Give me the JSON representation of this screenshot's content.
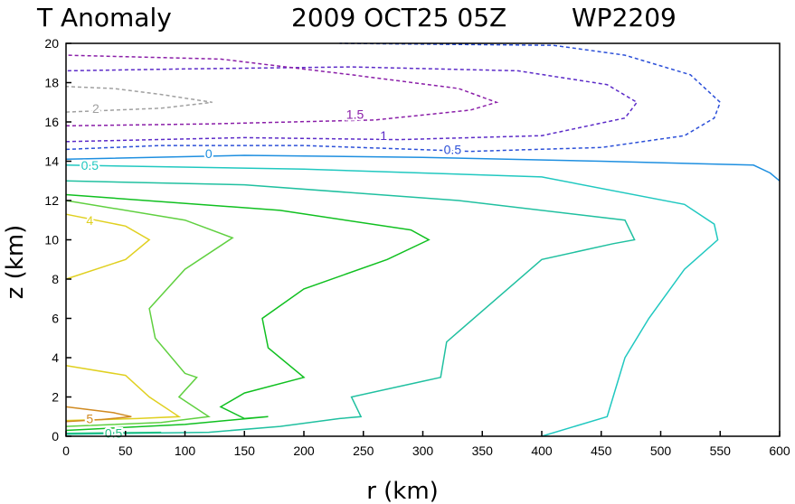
{
  "chart_data": {
    "type": "contour",
    "title": {
      "left": "T Anomaly",
      "date": "2009 OCT25 05Z",
      "storm": "WP2209"
    },
    "xlabel": "r (km)",
    "ylabel": "z (km)",
    "xlim": [
      0,
      600
    ],
    "ylim": [
      0,
      20
    ],
    "xticks": [
      0,
      50,
      100,
      150,
      200,
      250,
      300,
      350,
      400,
      450,
      500,
      550,
      600
    ],
    "yticks": [
      0,
      2,
      4,
      6,
      8,
      10,
      12,
      14,
      16,
      18,
      20
    ],
    "contours": [
      {
        "level": "-0.5",
        "style": "dashed",
        "color": "#2b4fd8",
        "label": "0.5",
        "label_at": [
          325,
          14.6
        ],
        "lines": [
          [
            [
              0,
              14.6
            ],
            [
              80,
              14.8
            ],
            [
              200,
              14.8
            ],
            [
              340,
              14.5
            ],
            [
              450,
              14.7
            ],
            [
              520,
              15.3
            ],
            [
              545,
              16.2
            ],
            [
              550,
              17.0
            ],
            [
              525,
              18.4
            ],
            [
              470,
              19.4
            ],
            [
              410,
              19.9
            ],
            [
              230,
              20.0
            ]
          ]
        ]
      },
      {
        "level": "-1",
        "style": "dashed",
        "color": "#5b2ac8",
        "label": "1",
        "label_at": [
          267,
          15.3
        ],
        "lines": [
          [
            [
              0,
              15.0
            ],
            [
              150,
              15.2
            ],
            [
              280,
              15.1
            ],
            [
              400,
              15.3
            ],
            [
              470,
              16.2
            ],
            [
              480,
              17.0
            ],
            [
              455,
              17.9
            ],
            [
              380,
              18.6
            ],
            [
              240,
              18.8
            ],
            [
              100,
              18.7
            ],
            [
              0,
              18.6
            ]
          ]
        ]
      },
      {
        "level": "-1.5",
        "style": "dashed",
        "color": "#8a1ea8",
        "label": "1.5",
        "label_at": [
          243,
          16.4
        ],
        "lines": [
          [
            [
              0,
              15.8
            ],
            [
              120,
              15.9
            ],
            [
              260,
              16.1
            ],
            [
              340,
              16.6
            ],
            [
              362,
              17.0
            ],
            [
              330,
              17.7
            ],
            [
              240,
              18.4
            ],
            [
              130,
              19.2
            ],
            [
              0,
              19.4
            ]
          ]
        ]
      },
      {
        "level": "-2",
        "style": "dashed",
        "color": "#a0a0a0",
        "label": "2",
        "label_at": [
          25,
          16.7
        ],
        "lines": [
          [
            [
              0,
              16.5
            ],
            [
              80,
              16.7
            ],
            [
              123,
              17.0
            ],
            [
              80,
              17.4
            ],
            [
              40,
              17.7
            ],
            [
              0,
              17.8
            ]
          ]
        ]
      },
      {
        "level": "0",
        "style": "solid",
        "color": "#1e8fe0",
        "label": "0",
        "label_at": [
          120,
          14.4
        ],
        "lines": [
          [
            [
              0,
              14.1
            ],
            [
              150,
              14.3
            ],
            [
              300,
              14.2
            ],
            [
              450,
              14.0
            ],
            [
              578,
              13.8
            ],
            [
              592,
              13.4
            ],
            [
              600,
              13.0
            ]
          ]
        ]
      },
      {
        "level": "0.5",
        "style": "solid",
        "color": "#20c8c0",
        "label": "0.5",
        "label_at": [
          20,
          13.8
        ],
        "lines": [
          [
            [
              0,
              13.8
            ],
            [
              200,
              13.6
            ],
            [
              400,
              13.2
            ],
            [
              520,
              11.8
            ],
            [
              545,
              10.8
            ],
            [
              548,
              10.0
            ],
            [
              520,
              8.5
            ],
            [
              490,
              6.0
            ],
            [
              470,
              4.0
            ],
            [
              460,
              2.0
            ],
            [
              455,
              1.0
            ],
            [
              400,
              0.0
            ]
          ]
        ]
      },
      {
        "level": "1",
        "style": "solid",
        "color": "#20c0a0",
        "lines": [
          [
            [
              0,
              13.0
            ],
            [
              150,
              12.8
            ],
            [
              330,
              12.0
            ],
            [
              470,
              11.0
            ],
            [
              478,
              10.0
            ],
            [
              460,
              9.8
            ],
            [
              400,
              9.0
            ],
            [
              320,
              4.8
            ],
            [
              315,
              3.0
            ],
            [
              300,
              2.8
            ],
            [
              240,
              2.0
            ],
            [
              248,
              1.0
            ],
            [
              230,
              0.9
            ],
            [
              180,
              0.5
            ],
            [
              120,
              0.2
            ],
            [
              0,
              0.1
            ]
          ]
        ]
      },
      {
        "level": "1.5",
        "style": "solid",
        "color": "#10c020",
        "lines": [
          [
            [
              0,
              12.3
            ],
            [
              180,
              11.5
            ],
            [
              290,
              10.5
            ],
            [
              305,
              10.0
            ],
            [
              270,
              9.0
            ],
            [
              200,
              7.5
            ],
            [
              165,
              6.0
            ],
            [
              170,
              4.5
            ],
            [
              200,
              3.0
            ],
            [
              150,
              2.2
            ],
            [
              130,
              1.5
            ],
            [
              150,
              0.9
            ],
            [
              170,
              1.0
            ],
            [
              100,
              0.6
            ],
            [
              0,
              0.3
            ]
          ]
        ]
      },
      {
        "level": "2",
        "style": "solid",
        "color": "#60d040",
        "lines": [
          [
            [
              0,
              12.0
            ],
            [
              100,
              11.0
            ],
            [
              140,
              10.1
            ],
            [
              100,
              8.5
            ],
            [
              70,
              6.5
            ],
            [
              75,
              5.0
            ],
            [
              100,
              3.2
            ],
            [
              110,
              3.0
            ],
            [
              95,
              2.0
            ],
            [
              120,
              1.0
            ],
            [
              80,
              0.7
            ],
            [
              0,
              0.5
            ]
          ]
        ]
      },
      {
        "level": "4",
        "style": "solid",
        "color": "#e0d020",
        "label": "4",
        "label_at": [
          20,
          11.0
        ],
        "lines": [
          [
            [
              0,
              11.3
            ],
            [
              50,
              10.7
            ],
            [
              70,
              10.0
            ],
            [
              50,
              9.0
            ],
            [
              0,
              8.0
            ]
          ],
          [
            [
              0,
              3.6
            ],
            [
              50,
              3.1
            ],
            [
              70,
              2.0
            ],
            [
              95,
              1.0
            ],
            [
              60,
              0.9
            ],
            [
              0,
              0.8
            ]
          ]
        ]
      },
      {
        "level": "5",
        "style": "solid",
        "color": "#d08a20",
        "label": "5",
        "label_at": [
          20,
          0.9
        ],
        "lines": [
          [
            [
              0,
              1.5
            ],
            [
              40,
              1.2
            ],
            [
              55,
              1.0
            ],
            [
              30,
              0.85
            ],
            [
              0,
              0.75
            ]
          ]
        ]
      },
      {
        "level": "1_low",
        "style": "solid",
        "color": "#20c080",
        "label": "0.5",
        "label_at": [
          40,
          0.15
        ],
        "lines": [
          [
            [
              0,
              0.15
            ],
            [
              40,
              0.18
            ],
            [
              80,
              0.2
            ]
          ]
        ]
      }
    ]
  }
}
